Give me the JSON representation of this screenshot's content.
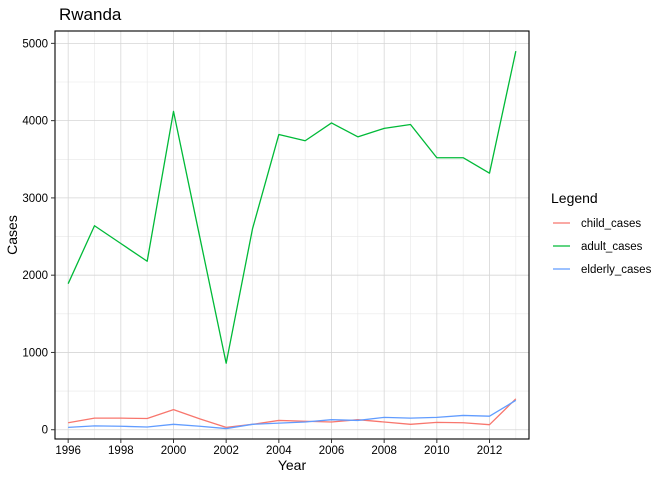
{
  "chart_data": {
    "type": "line",
    "title": "Rwanda",
    "xlabel": "Year",
    "ylabel": "Cases",
    "xlim": [
      1995.5,
      2013.5
    ],
    "ylim": [
      -120,
      5160
    ],
    "x_ticks": [
      1996,
      1998,
      2000,
      2002,
      2004,
      2006,
      2008,
      2010,
      2012
    ],
    "y_ticks": [
      0,
      1000,
      2000,
      3000,
      4000,
      5000
    ],
    "grid": true,
    "legend": {
      "title": "Legend",
      "position": "right"
    },
    "x": [
      1996,
      1997,
      1998,
      1999,
      2000,
      2001,
      2002,
      2003,
      2004,
      2005,
      2006,
      2007,
      2008,
      2009,
      2010,
      2011,
      2012,
      2013
    ],
    "series": [
      {
        "name": "child_cases",
        "color": "#F8766D",
        "values": [
          90,
          150,
          150,
          145,
          260,
          140,
          30,
          70,
          120,
          110,
          100,
          130,
          100,
          70,
          95,
          90,
          65,
          400
        ]
      },
      {
        "name": "adult_cases",
        "color": "#00BA38",
        "values": [
          1890,
          2640,
          2410,
          2180,
          4120,
          2490,
          860,
          2600,
          3820,
          3740,
          3970,
          3790,
          3900,
          3950,
          3520,
          3520,
          3320,
          4900
        ]
      },
      {
        "name": "elderly_cases",
        "color": "#619CFF",
        "values": [
          30,
          50,
          45,
          35,
          70,
          45,
          15,
          70,
          85,
          100,
          130,
          120,
          160,
          150,
          160,
          185,
          175,
          380
        ]
      }
    ]
  }
}
